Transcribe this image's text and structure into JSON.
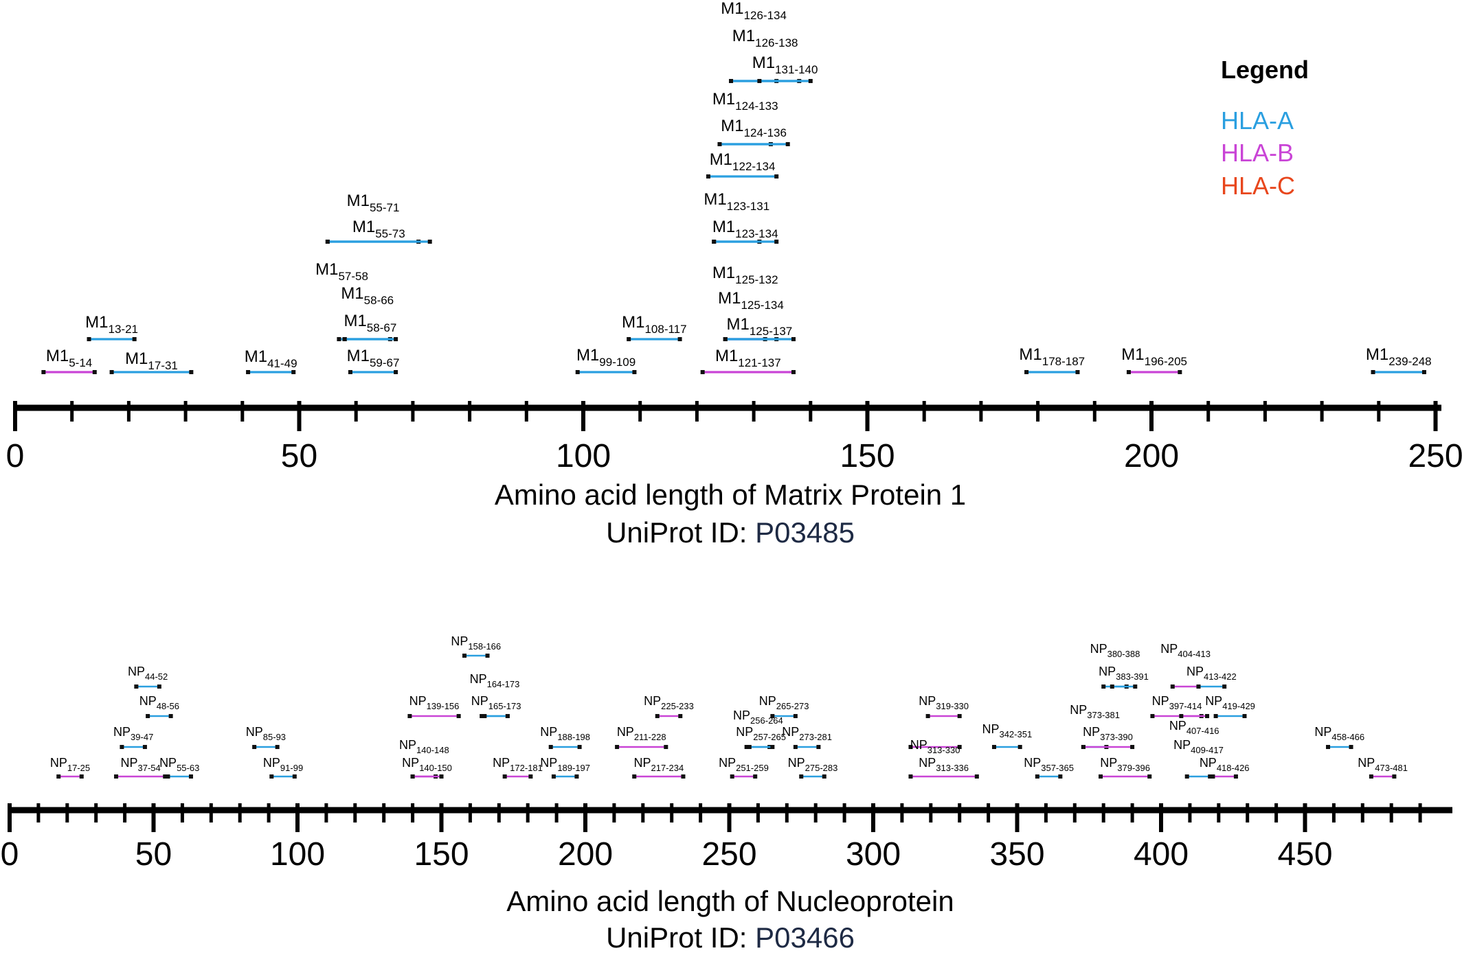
{
  "colors": {
    "HLA-A": "#2a9fe0",
    "HLA-B": "#c944d6",
    "HLA-C": "#e8461c",
    "uniprot_id": "#1e2a44"
  },
  "legend": {
    "title": "Legend",
    "entries": [
      {
        "label": "HLA-A",
        "color": "#2a9fe0"
      },
      {
        "label": "HLA-B",
        "color": "#c944d6"
      },
      {
        "label": "HLA-C",
        "color": "#e8461c"
      }
    ]
  },
  "chart_data": [
    {
      "type": "range",
      "xlabel": "Amino acid length of Matrix Protein 1",
      "uniprot_prefix": "UniProt ID: ",
      "uniprot_id": "P03485",
      "xlim": [
        0,
        250
      ],
      "tick_labels": [
        "0",
        "50",
        "100",
        "150",
        "200",
        "250"
      ],
      "epitopes": [
        {
          "name": "M1",
          "range": "5-14",
          "start": 5,
          "end": 14,
          "hla": "HLA-B"
        },
        {
          "name": "M1",
          "range": "13-21",
          "start": 13,
          "end": 21,
          "hla": "HLA-A"
        },
        {
          "name": "M1",
          "range": "17-31",
          "start": 17,
          "end": 31,
          "hla": "HLA-A"
        },
        {
          "name": "M1",
          "range": "41-49",
          "start": 41,
          "end": 49,
          "hla": "HLA-A"
        },
        {
          "name": "M1",
          "range": "55-71",
          "start": 55,
          "end": 71,
          "hla": "HLA-A"
        },
        {
          "name": "M1",
          "range": "55-73",
          "start": 55,
          "end": 73,
          "hla": "HLA-A"
        },
        {
          "name": "M1",
          "range": "57-58",
          "start": 57,
          "end": 58,
          "hla": "HLA-A"
        },
        {
          "name": "M1",
          "range": "58-66",
          "start": 58,
          "end": 66,
          "hla": "HLA-A"
        },
        {
          "name": "M1",
          "range": "58-67",
          "start": 58,
          "end": 67,
          "hla": "HLA-A"
        },
        {
          "name": "M1",
          "range": "59-67",
          "start": 59,
          "end": 67,
          "hla": "HLA-A"
        },
        {
          "name": "M1",
          "range": "99-109",
          "start": 99,
          "end": 109,
          "hla": "HLA-A"
        },
        {
          "name": "M1",
          "range": "108-117",
          "start": 108,
          "end": 117,
          "hla": "HLA-A"
        },
        {
          "name": "M1",
          "range": "121-137",
          "start": 121,
          "end": 137,
          "hla": "HLA-B"
        },
        {
          "name": "M1",
          "range": "122-134",
          "start": 122,
          "end": 134,
          "hla": "HLA-A"
        },
        {
          "name": "M1",
          "range": "123-131",
          "start": 123,
          "end": 131,
          "hla": "HLA-A"
        },
        {
          "name": "M1",
          "range": "123-134",
          "start": 123,
          "end": 134,
          "hla": "HLA-A"
        },
        {
          "name": "M1",
          "range": "124-133",
          "start": 124,
          "end": 133,
          "hla": "HLA-A"
        },
        {
          "name": "M1",
          "range": "124-136",
          "start": 124,
          "end": 136,
          "hla": "HLA-A"
        },
        {
          "name": "M1",
          "range": "125-132",
          "start": 125,
          "end": 132,
          "hla": "HLA-B"
        },
        {
          "name": "M1",
          "range": "125-134",
          "start": 125,
          "end": 134,
          "hla": "HLA-A"
        },
        {
          "name": "M1",
          "range": "125-137",
          "start": 125,
          "end": 137,
          "hla": "HLA-A"
        },
        {
          "name": "M1",
          "range": "126-134",
          "start": 126,
          "end": 134,
          "hla": "HLA-A"
        },
        {
          "name": "M1",
          "range": "126-138",
          "start": 126,
          "end": 138,
          "hla": "HLA-A"
        },
        {
          "name": "M1",
          "range": "131-140",
          "start": 131,
          "end": 140,
          "hla": "HLA-A"
        },
        {
          "name": "M1",
          "range": "178-187",
          "start": 178,
          "end": 187,
          "hla": "HLA-A"
        },
        {
          "name": "M1",
          "range": "196-205",
          "start": 196,
          "end": 205,
          "hla": "HLA-B"
        },
        {
          "name": "M1",
          "range": "239-248",
          "start": 239,
          "end": 248,
          "hla": "HLA-A"
        }
      ]
    },
    {
      "type": "range",
      "xlabel": "Amino acid length of Nucleoprotein",
      "uniprot_prefix": "UniProt ID: ",
      "uniprot_id": "P03466",
      "xlim": [
        0,
        498
      ],
      "tick_labels": [
        "0",
        "50",
        "100",
        "150",
        "200",
        "250",
        "300",
        "350",
        "400",
        "450"
      ],
      "epitopes": [
        {
          "name": "NP",
          "range": "17-25",
          "start": 17,
          "end": 25,
          "hla": "HLA-B"
        },
        {
          "name": "NP",
          "range": "37-54",
          "start": 37,
          "end": 54,
          "hla": "HLA-B"
        },
        {
          "name": "NP",
          "range": "39-47",
          "start": 39,
          "end": 47,
          "hla": "HLA-A"
        },
        {
          "name": "NP",
          "range": "44-52",
          "start": 44,
          "end": 52,
          "hla": "HLA-A"
        },
        {
          "name": "NP",
          "range": "48-56",
          "start": 48,
          "end": 56,
          "hla": "HLA-A"
        },
        {
          "name": "NP",
          "range": "55-63",
          "start": 55,
          "end": 63,
          "hla": "HLA-A"
        },
        {
          "name": "NP",
          "range": "85-93",
          "start": 85,
          "end": 93,
          "hla": "HLA-A"
        },
        {
          "name": "NP",
          "range": "91-99",
          "start": 91,
          "end": 99,
          "hla": "HLA-A"
        },
        {
          "name": "NP",
          "range": "139-156",
          "start": 139,
          "end": 156,
          "hla": "HLA-B"
        },
        {
          "name": "NP",
          "range": "140-148",
          "start": 140,
          "end": 148,
          "hla": "HLA-B"
        },
        {
          "name": "NP",
          "range": "140-150",
          "start": 140,
          "end": 150,
          "hla": "HLA-B"
        },
        {
          "name": "NP",
          "range": "158-166",
          "start": 158,
          "end": 166,
          "hla": "HLA-A"
        },
        {
          "name": "NP",
          "range": "164-173",
          "start": 164,
          "end": 173,
          "hla": "HLA-A"
        },
        {
          "name": "NP",
          "range": "165-173",
          "start": 165,
          "end": 173,
          "hla": "HLA-A"
        },
        {
          "name": "NP",
          "range": "172-181",
          "start": 172,
          "end": 181,
          "hla": "HLA-B"
        },
        {
          "name": "NP",
          "range": "188-198",
          "start": 188,
          "end": 198,
          "hla": "HLA-A"
        },
        {
          "name": "NP",
          "range": "189-197",
          "start": 189,
          "end": 197,
          "hla": "HLA-A"
        },
        {
          "name": "NP",
          "range": "211-228",
          "start": 211,
          "end": 228,
          "hla": "HLA-B"
        },
        {
          "name": "NP",
          "range": "217-234",
          "start": 217,
          "end": 234,
          "hla": "HLA-B"
        },
        {
          "name": "NP",
          "range": "225-233",
          "start": 225,
          "end": 233,
          "hla": "HLA-B"
        },
        {
          "name": "NP",
          "range": "251-259",
          "start": 251,
          "end": 259,
          "hla": "HLA-B"
        },
        {
          "name": "NP",
          "range": "256-264",
          "start": 256,
          "end": 264,
          "hla": "HLA-A"
        },
        {
          "name": "NP",
          "range": "257-265",
          "start": 257,
          "end": 265,
          "hla": "HLA-A"
        },
        {
          "name": "NP",
          "range": "265-273",
          "start": 265,
          "end": 273,
          "hla": "HLA-A"
        },
        {
          "name": "NP",
          "range": "273-281",
          "start": 273,
          "end": 281,
          "hla": "HLA-A"
        },
        {
          "name": "NP",
          "range": "275-283",
          "start": 275,
          "end": 283,
          "hla": "HLA-A"
        },
        {
          "name": "NP",
          "range": "313-330",
          "start": 313,
          "end": 330,
          "hla": "HLA-B"
        },
        {
          "name": "NP",
          "range": "313-336",
          "start": 313,
          "end": 336,
          "hla": "HLA-B"
        },
        {
          "name": "NP",
          "range": "319-330",
          "start": 319,
          "end": 330,
          "hla": "HLA-B"
        },
        {
          "name": "NP",
          "range": "342-351",
          "start": 342,
          "end": 351,
          "hla": "HLA-A"
        },
        {
          "name": "NP",
          "range": "357-365",
          "start": 357,
          "end": 365,
          "hla": "HLA-A"
        },
        {
          "name": "NP",
          "range": "373-381",
          "start": 373,
          "end": 381,
          "hla": "HLA-A"
        },
        {
          "name": "NP",
          "range": "373-390",
          "start": 373,
          "end": 390,
          "hla": "HLA-B"
        },
        {
          "name": "NP",
          "range": "379-396",
          "start": 379,
          "end": 396,
          "hla": "HLA-B"
        },
        {
          "name": "NP",
          "range": "380-388",
          "start": 380,
          "end": 388,
          "hla": "HLA-A"
        },
        {
          "name": "NP",
          "range": "383-391",
          "start": 383,
          "end": 391,
          "hla": "HLA-A"
        },
        {
          "name": "NP",
          "range": "397-414",
          "start": 397,
          "end": 414,
          "hla": "HLA-B"
        },
        {
          "name": "NP",
          "range": "404-413",
          "start": 404,
          "end": 413,
          "hla": "HLA-B"
        },
        {
          "name": "NP",
          "range": "407-416",
          "start": 407,
          "end": 416,
          "hla": "HLA-B"
        },
        {
          "name": "NP",
          "range": "409-417",
          "start": 409,
          "end": 417,
          "hla": "HLA-A"
        },
        {
          "name": "NP",
          "range": "413-422",
          "start": 413,
          "end": 422,
          "hla": "HLA-A"
        },
        {
          "name": "NP",
          "range": "418-426",
          "start": 418,
          "end": 426,
          "hla": "HLA-B"
        },
        {
          "name": "NP",
          "range": "419-429",
          "start": 419,
          "end": 429,
          "hla": "HLA-A"
        },
        {
          "name": "NP",
          "range": "458-466",
          "start": 458,
          "end": 466,
          "hla": "HLA-A"
        },
        {
          "name": "NP",
          "range": "473-481",
          "start": 473,
          "end": 481,
          "hla": "HLA-B"
        }
      ]
    }
  ]
}
